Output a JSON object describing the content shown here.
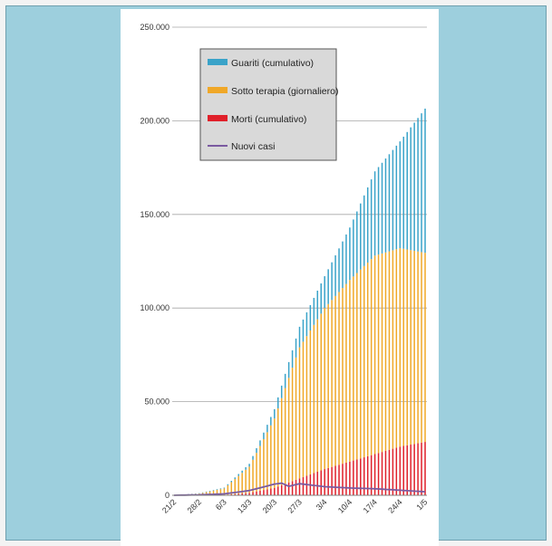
{
  "chart_data": {
    "type": "bar",
    "title": "",
    "xlabel": "",
    "ylabel": "",
    "ylim": [
      0,
      250000
    ],
    "yticks": [
      0,
      50000,
      100000,
      150000,
      200000,
      250000
    ],
    "ytick_labels": [
      "0",
      "50.000",
      "100.000",
      "150.000",
      "200.000",
      "250.000"
    ],
    "xtick_labels": [
      "21/2",
      "28/2",
      "6/3",
      "13/3",
      "20/3",
      "27/3",
      "3/4",
      "10/4",
      "17/4",
      "24/4",
      "1/5"
    ],
    "start_date": "21/2",
    "end_date": "1/5",
    "grid": true,
    "legend_position": "top-left",
    "colors": {
      "guariti": "#3aa3c9",
      "terapia": "#f0a828",
      "morti": "#e0202a",
      "nuovi": "#7a5aa0"
    },
    "series": [
      {
        "name": "Guariti (cumulativo)",
        "key": "guariti",
        "stack": true,
        "points": [
          [
            "21/2",
            0
          ],
          [
            "6/3",
            400
          ],
          [
            "13/3",
            1500
          ],
          [
            "20/3",
            5000
          ],
          [
            "27/3",
            11000
          ],
          [
            "3/4",
            17000
          ],
          [
            "10/4",
            28000
          ],
          [
            "17/4",
            45000
          ],
          [
            "24/4",
            57000
          ],
          [
            "1/5",
            77000
          ]
        ]
      },
      {
        "name": "Sotto terapia (giornaliero)",
        "key": "terapia",
        "stack": true,
        "points": [
          [
            "21/2",
            15
          ],
          [
            "28/2",
            900
          ],
          [
            "6/3",
            3500
          ],
          [
            "13/3",
            14000
          ],
          [
            "20/3",
            37000
          ],
          [
            "27/3",
            70000
          ],
          [
            "3/4",
            86000
          ],
          [
            "10/4",
            97000
          ],
          [
            "17/4",
            106000
          ],
          [
            "24/4",
            106000
          ],
          [
            "1/5",
            101000
          ]
        ]
      },
      {
        "name": "Morti (cumulativo)",
        "key": "morti",
        "stack": true,
        "points": [
          [
            "21/2",
            0
          ],
          [
            "28/2",
            20
          ],
          [
            "6/3",
            200
          ],
          [
            "13/3",
            1300
          ],
          [
            "20/3",
            4000
          ],
          [
            "27/3",
            9000
          ],
          [
            "3/4",
            14000
          ],
          [
            "10/4",
            18000
          ],
          [
            "17/4",
            22000
          ],
          [
            "24/4",
            26000
          ],
          [
            "1/5",
            28500
          ]
        ]
      },
      {
        "name": "Nuovi casi",
        "key": "nuovi",
        "type": "line",
        "points": [
          [
            "21/2",
            20
          ],
          [
            "28/2",
            240
          ],
          [
            "6/3",
            770
          ],
          [
            "13/3",
            2500
          ],
          [
            "20/3",
            6000
          ],
          [
            "22/3",
            6500
          ],
          [
            "24/3",
            4800
          ],
          [
            "27/3",
            6200
          ],
          [
            "3/4",
            4600
          ],
          [
            "10/4",
            3900
          ],
          [
            "17/4",
            3500
          ],
          [
            "24/4",
            2700
          ],
          [
            "1/5",
            1900
          ]
        ]
      }
    ]
  }
}
